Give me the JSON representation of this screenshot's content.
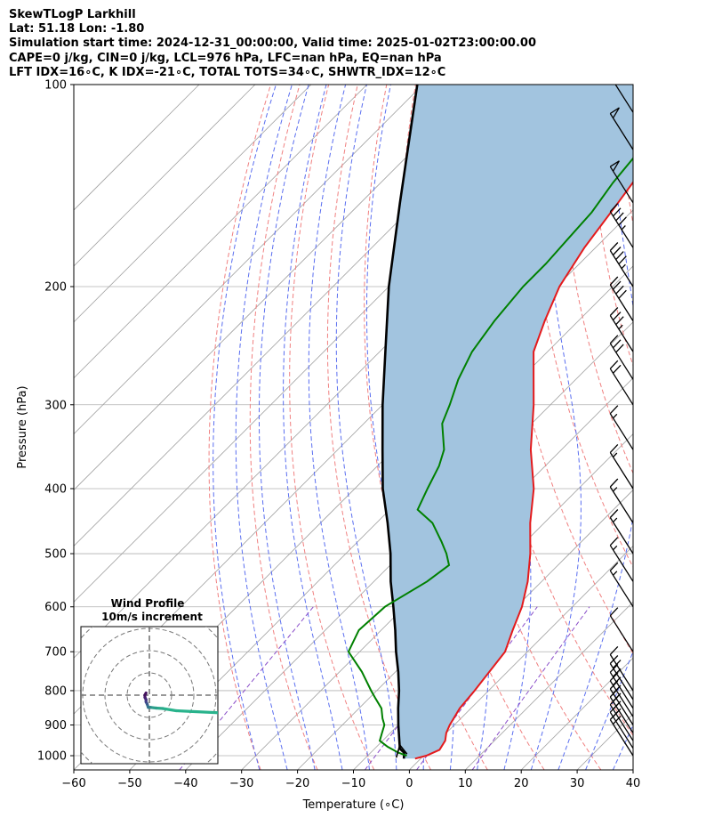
{
  "header": {
    "line1": "SkewTLogP Larkhill",
    "line2": "Lat: 51.18   Lon: -1.80",
    "line3": "Simulation start time: 2024-12-31_00:00:00, Valid time: 2025-01-02T23:00:00.00",
    "line4": "CAPE=0 j/kg, CIN=0 j/kg, LCL=976 hPa, LFC=nan hPa, EQ=nan hPa",
    "line5": "LFT IDX=16∘C, K IDX=-21∘C, TOTAL TOTS=34∘C, SHWTR_IDX=12∘C"
  },
  "chart_data": {
    "type": "line",
    "subtype": "skew-t log-p",
    "xlabel": "Temperature (∘C)",
    "ylabel": "Pressure (hPa)",
    "x_ticks": [
      "−60",
      "−50",
      "−40",
      "−30",
      "−20",
      "−10",
      "0",
      "10",
      "20",
      "30",
      "40"
    ],
    "x_tick_values": [
      -60,
      -50,
      -40,
      -30,
      -20,
      -10,
      0,
      10,
      20,
      30,
      40
    ],
    "y_ticks": [
      "100",
      "200",
      "300",
      "400",
      "500",
      "600",
      "700",
      "800",
      "900",
      "1000"
    ],
    "y_tick_values": [
      100,
      200,
      300,
      400,
      500,
      600,
      700,
      800,
      900,
      1000
    ],
    "xlim": [
      -60,
      40
    ],
    "ylim": [
      1050,
      100
    ],
    "y_scale": "log",
    "skew_degrees": 45,
    "colors": {
      "temperature": "#e41a1c",
      "dewpoint": "#008000",
      "parcel": "#000000",
      "shading": "#a2c4df",
      "dry_adiabats": "#f08080",
      "moist_adiabats": "#5a6ef0",
      "mixing_ratio": "#8a4ec9",
      "isotherms": "#a0a0a0"
    },
    "series": [
      {
        "key": "temperature",
        "pressure": [
          1010,
          1000,
          980,
          950,
          925,
          900,
          850,
          800,
          700,
          650,
          600,
          550,
          500,
          450,
          400,
          350,
          300,
          270,
          250,
          225,
          200,
          175,
          150,
          125,
          100
        ],
        "temp": [
          -1,
          0.5,
          1.8,
          1.2,
          0,
          -0.8,
          -2,
          -2.5,
          -4,
          -6.5,
          -9,
          -12.5,
          -17,
          -22.5,
          -28,
          -35.5,
          -43,
          -48.5,
          -52.5,
          -56,
          -59.5,
          -62,
          -64,
          -66.5,
          -69
        ]
      },
      {
        "key": "dewpoint",
        "pressure": [
          1000,
          990,
          970,
          950,
          925,
          900,
          880,
          850,
          820,
          800,
          750,
          700,
          650,
          600,
          550,
          520,
          500,
          480,
          450,
          430,
          400,
          370,
          350,
          320,
          300,
          275,
          250,
          225,
          200,
          185,
          170,
          155,
          140,
          125,
          100
        ],
        "temp": [
          -3,
          -5,
          -8,
          -10.5,
          -11.5,
          -12.5,
          -14,
          -16,
          -19,
          -21,
          -26,
          -32,
          -34,
          -33.5,
          -30.5,
          -29.5,
          -32,
          -35,
          -40,
          -45,
          -47,
          -49,
          -51,
          -56,
          -58,
          -61,
          -63.5,
          -65,
          -66,
          -66,
          -66.5,
          -67,
          -68.5,
          -69.5,
          -72
        ]
      },
      {
        "key": "parcel",
        "pressure": [
          1010,
          990,
          976,
          950,
          900,
          850,
          800,
          750,
          700,
          650,
          600,
          550,
          500,
          450,
          400,
          350,
          300,
          250,
          200,
          150,
          100
        ],
        "temp": [
          -3,
          -4,
          -5.5,
          -7,
          -10,
          -13,
          -16,
          -19.5,
          -23.5,
          -27.5,
          -32,
          -37,
          -42,
          -48,
          -55,
          -62,
          -70,
          -79,
          -90,
          -103,
          -121
        ]
      }
    ],
    "hodograph": {
      "title": "Wind Profile",
      "subtitle": "10m/s increment",
      "u": [
        12,
        6,
        3,
        0.5,
        -0.5,
        -1,
        -1.5,
        -1.5,
        -2,
        -2,
        -1.5
      ],
      "v": [
        -7,
        -6,
        -5.8,
        -5.5,
        -5.5,
        -4,
        -3,
        -2,
        -1,
        0,
        1
      ]
    },
    "barbs": {
      "pressure": [
        1000,
        975,
        950,
        925,
        900,
        875,
        850,
        825,
        800,
        700,
        600,
        550,
        500,
        450,
        400,
        350,
        300,
        275,
        250,
        225,
        200,
        175,
        150,
        125,
        110
      ],
      "speed_kt": [
        20,
        20,
        20,
        20,
        20,
        20,
        20,
        20,
        10,
        10,
        15,
        15,
        15,
        15,
        15,
        15,
        20,
        30,
        35,
        40,
        45,
        45,
        50,
        50,
        50
      ]
    }
  }
}
